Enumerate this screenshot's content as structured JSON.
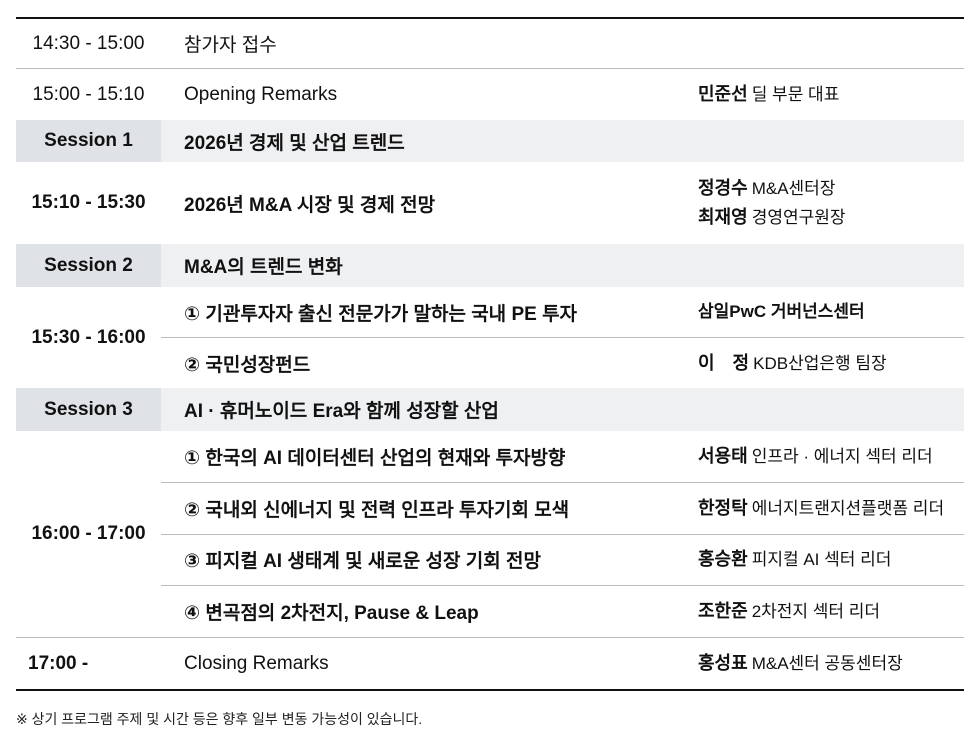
{
  "rows": [
    {
      "time": "14:30 - 15:00",
      "title": "참가자 접수"
    },
    {
      "time": "15:00 - 15:10",
      "title": "Opening Remarks",
      "speakers": [
        {
          "name": "민준선",
          "role": "딜 부문 대표"
        }
      ]
    },
    {
      "session": "Session 1",
      "title": "2026년 경제 및 산업 트렌드"
    },
    {
      "time": "15:10 - 15:30",
      "title": "2026년 M&A 시장 및 경제 전망",
      "speakers": [
        {
          "name": "정경수",
          "role": "M&A센터장"
        },
        {
          "name": "최재영",
          "role": "경영연구원장"
        }
      ]
    },
    {
      "session": "Session 2",
      "title": "M&A의 트렌드 변화"
    },
    {
      "time": "15:30 - 16:00",
      "items": [
        {
          "title": "① 기관투자자 출신 전문가가 말하는 국내 PE 투자",
          "name": "",
          "role": "삼일PwC 거버넌스센터"
        },
        {
          "title": "② 국민성장펀드",
          "name": "이　정",
          "role": "KDB산업은행 팀장"
        }
      ]
    },
    {
      "session": "Session 3",
      "title": "AI · 휴머노이드 Era와 함께 성장할 산업"
    },
    {
      "time": "16:00 - 17:00",
      "items": [
        {
          "title": "① 한국의 AI 데이터센터 산업의 현재와 투자방향",
          "name": "서용태",
          "role": "인프라 · 에너지 섹터 리더"
        },
        {
          "title": "② 국내외 신에너지 및 전력 인프라 투자기회 모색",
          "name": "한정탁",
          "role": "에너지트랜지션플랫폼 리더"
        },
        {
          "title": "③ 피지컬 AI 생태계 및 새로운 성장 기회 전망",
          "name": "홍승환",
          "role": "피지컬 AI 섹터 리더"
        },
        {
          "title": "④ 변곡점의 2차전지, Pause & Leap",
          "name": "조한준",
          "role": "2차전지 섹터 리더"
        }
      ]
    },
    {
      "time": "17:00 -",
      "title": "Closing Remarks",
      "speakers": [
        {
          "name": "홍성표",
          "role": "M&A센터 공동센터장"
        }
      ]
    }
  ],
  "footnote": "※ 상기 프로그램 주제 및 시간 등은 향후 일부 변동 가능성이 있습니다."
}
